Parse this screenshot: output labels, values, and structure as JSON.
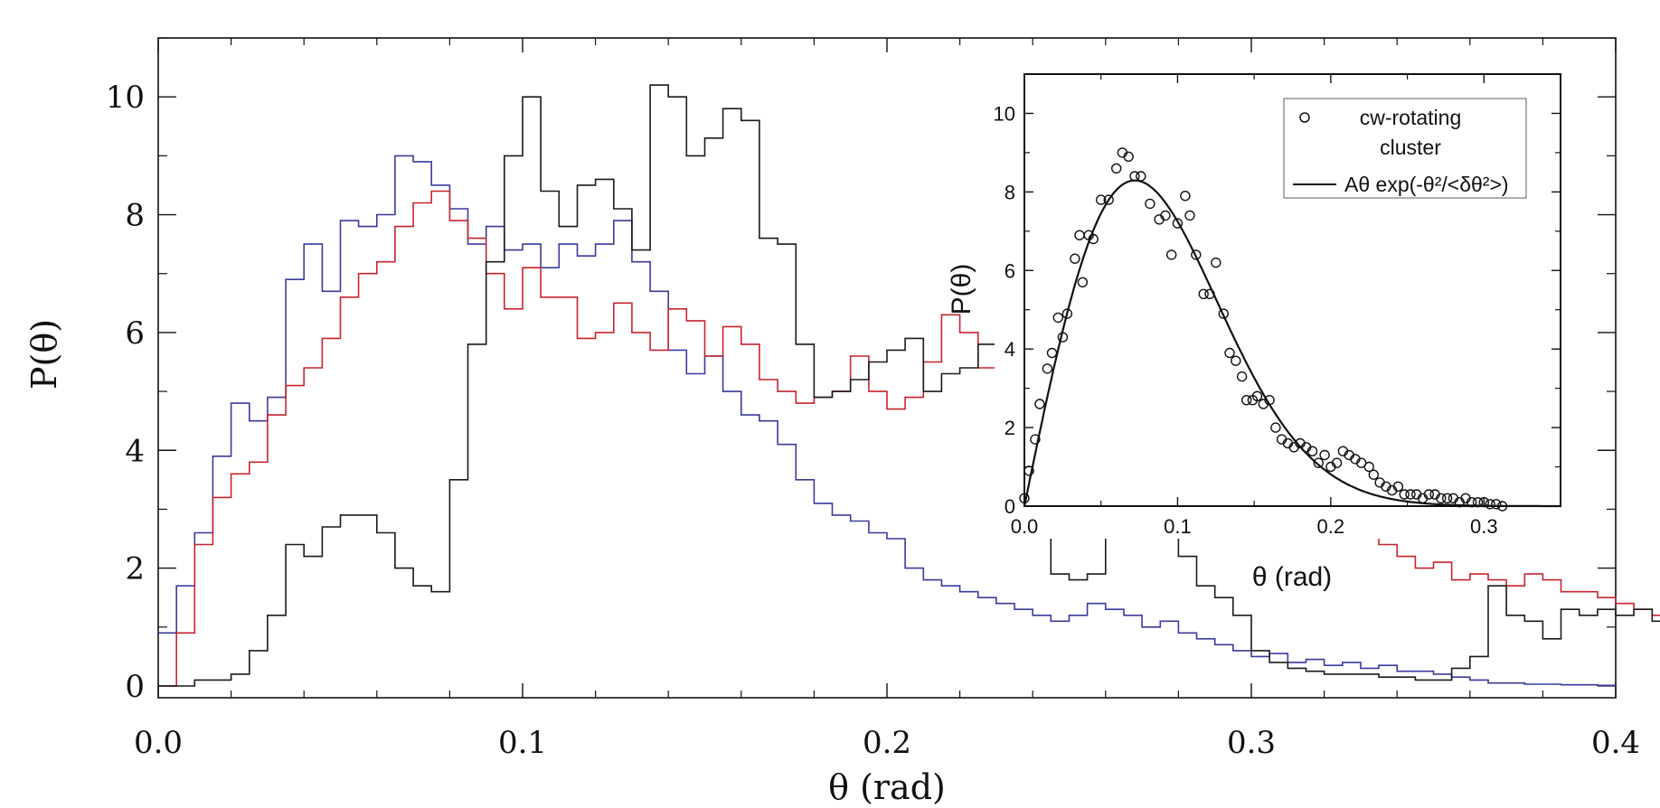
{
  "chart_data": [
    {
      "type": "line",
      "subtype": "step-histogram",
      "title": "",
      "xlabel": "θ (rad)",
      "ylabel": "P(θ)",
      "xlim": [
        0.0,
        0.4
      ],
      "ylim": [
        -0.2,
        11.0
      ],
      "x_ticks": [
        0.0,
        0.1,
        0.2,
        0.3,
        0.4
      ],
      "x_tick_labels": [
        "0.0",
        "0.1",
        "0.2",
        "0.3",
        "0.4"
      ],
      "y_ticks": [
        0,
        2,
        4,
        6,
        8,
        10
      ],
      "y_tick_labels": [
        "0",
        "2",
        "4",
        "6",
        "8",
        "10"
      ],
      "bin_width": 0.005,
      "bin_start": 0.0,
      "series": [
        {
          "name": "blue",
          "color": "#3a3a9e",
          "values": [
            0.9,
            1.7,
            2.6,
            3.9,
            4.8,
            4.5,
            4.9,
            6.9,
            7.5,
            6.7,
            7.9,
            7.8,
            8.0,
            9.0,
            8.9,
            8.5,
            8.1,
            7.5,
            7.8,
            7.4,
            7.5,
            7.1,
            7.5,
            7.3,
            7.5,
            7.9,
            7.2,
            6.7,
            5.7,
            5.3,
            5.6,
            5.0,
            4.6,
            4.5,
            4.1,
            3.5,
            3.1,
            2.9,
            2.8,
            2.6,
            2.5,
            2.0,
            1.8,
            1.7,
            1.6,
            1.5,
            1.4,
            1.3,
            1.2,
            1.1,
            1.2,
            1.4,
            1.3,
            1.2,
            1.0,
            1.1,
            0.9,
            0.8,
            0.7,
            0.6,
            0.5,
            0.55,
            0.4,
            0.45,
            0.35,
            0.4,
            0.3,
            0.35,
            0.25,
            0.25,
            0.2,
            0.15,
            0.1,
            0.05,
            0.05,
            0.03,
            0.03,
            0.02,
            0.02,
            0.01
          ]
        },
        {
          "name": "red",
          "color": "#c8242f",
          "values": [
            0.0,
            0.9,
            2.4,
            3.2,
            3.6,
            3.8,
            4.6,
            5.1,
            5.4,
            5.9,
            6.6,
            7.0,
            7.2,
            7.8,
            8.2,
            8.4,
            7.9,
            7.6,
            7.0,
            6.4,
            7.1,
            6.6,
            6.6,
            5.9,
            6.0,
            6.5,
            6.0,
            5.7,
            6.4,
            6.2,
            5.6,
            6.1,
            5.8,
            5.2,
            5.0,
            4.8,
            4.9,
            5.0,
            5.6,
            5.0,
            4.7,
            4.9,
            5.5,
            6.3,
            6.0,
            5.4,
            5.3,
            5.7,
            5.3,
            5.6,
            4.8,
            4.6,
            4.5,
            4.4,
            4.3,
            3.4,
            3.2,
            2.9,
            2.7,
            2.8,
            2.7,
            2.9,
            3.0,
            3.4,
            3.0,
            3.3,
            3.0,
            2.4,
            2.2,
            2.0,
            2.1,
            1.8,
            1.9,
            1.8,
            1.7,
            1.9,
            1.8,
            1.6,
            1.6,
            1.5,
            1.4,
            1.3,
            1.2,
            1.0,
            0.95,
            0.9,
            0.85,
            0.75,
            0.65,
            0.55,
            0.45,
            0.35,
            0.25,
            0.18,
            0.12,
            0.1,
            0.09,
            0.08,
            0.07,
            0.06,
            0.05,
            0.04,
            0.06,
            0.05,
            0.04,
            0.05,
            0.04,
            0.05,
            0.04,
            0.03,
            0.03,
            0.02,
            0.02,
            0.03,
            0.02,
            0.02,
            0.03,
            0.02,
            0.02,
            0.01
          ]
        },
        {
          "name": "black",
          "color": "#1a1a1a",
          "values": [
            0.0,
            0.0,
            0.1,
            0.1,
            0.2,
            0.6,
            1.2,
            2.4,
            2.2,
            2.7,
            2.9,
            2.9,
            2.6,
            2.0,
            1.7,
            1.6,
            3.5,
            5.8,
            7.2,
            9.0,
            10.0,
            8.4,
            7.8,
            8.5,
            8.6,
            8.1,
            7.4,
            10.2,
            10.0,
            9.0,
            9.3,
            9.8,
            9.6,
            7.6,
            7.5,
            5.8,
            4.9,
            5.0,
            5.2,
            5.5,
            5.7,
            5.9,
            5.0,
            5.3,
            5.4,
            5.8,
            5.4,
            4.8,
            3.1,
            1.9,
            1.8,
            1.9,
            2.9,
            3.4,
            4.0,
            3.1,
            2.2,
            1.7,
            1.5,
            1.2,
            0.6,
            0.4,
            0.3,
            0.25,
            0.2,
            0.2,
            0.2,
            0.15,
            0.15,
            0.1,
            0.1,
            0.3,
            0.5,
            1.7,
            1.2,
            1.1,
            0.8,
            1.3,
            1.2,
            1.3,
            1.2,
            1.3,
            1.1,
            0.9,
            0.6,
            0.3,
            0.2,
            0.1,
            0.05,
            0.0
          ]
        }
      ]
    },
    {
      "type": "scatter",
      "title": "",
      "xlabel": "θ (rad)",
      "ylabel": "P(θ)",
      "xlim": [
        0.0,
        0.35
      ],
      "ylim": [
        0,
        11
      ],
      "x_ticks": [
        0.0,
        0.1,
        0.2,
        0.3
      ],
      "x_tick_labels": [
        "0.0",
        "0.1",
        "0.2",
        "0.3"
      ],
      "y_ticks": [
        0,
        2,
        4,
        6,
        8,
        10
      ],
      "y_tick_labels": [
        "0",
        "2",
        "4",
        "6",
        "8",
        "10"
      ],
      "legend": {
        "placement": "top-right",
        "entries": [
          {
            "marker": "open-circle",
            "label_line1": "cw-rotating",
            "label_line2": "cluster"
          },
          {
            "marker": "line",
            "label": "Aθ exp(-θ²/<δθ²>)"
          }
        ]
      },
      "series": [
        {
          "name": "cw-rotating cluster",
          "marker": "open-circle",
          "points": [
            [
              0.0,
              0.2
            ],
            [
              0.003,
              0.9
            ],
            [
              0.007,
              1.7
            ],
            [
              0.01,
              2.6
            ],
            [
              0.015,
              3.5
            ],
            [
              0.018,
              3.9
            ],
            [
              0.022,
              4.8
            ],
            [
              0.025,
              4.3
            ],
            [
              0.028,
              4.9
            ],
            [
              0.033,
              6.3
            ],
            [
              0.036,
              6.9
            ],
            [
              0.038,
              5.7
            ],
            [
              0.042,
              6.9
            ],
            [
              0.045,
              6.8
            ],
            [
              0.05,
              7.8
            ],
            [
              0.055,
              7.8
            ],
            [
              0.06,
              8.6
            ],
            [
              0.064,
              9.0
            ],
            [
              0.068,
              8.9
            ],
            [
              0.072,
              8.4
            ],
            [
              0.076,
              8.4
            ],
            [
              0.082,
              7.7
            ],
            [
              0.088,
              7.3
            ],
            [
              0.092,
              7.4
            ],
            [
              0.096,
              6.4
            ],
            [
              0.1,
              7.2
            ],
            [
              0.105,
              7.9
            ],
            [
              0.108,
              7.4
            ],
            [
              0.112,
              6.4
            ],
            [
              0.117,
              5.4
            ],
            [
              0.121,
              5.4
            ],
            [
              0.125,
              6.2
            ],
            [
              0.13,
              4.9
            ],
            [
              0.134,
              3.9
            ],
            [
              0.138,
              3.7
            ],
            [
              0.142,
              3.3
            ],
            [
              0.145,
              2.7
            ],
            [
              0.149,
              2.7
            ],
            [
              0.152,
              2.8
            ],
            [
              0.156,
              2.6
            ],
            [
              0.16,
              2.7
            ],
            [
              0.164,
              2.0
            ],
            [
              0.168,
              1.7
            ],
            [
              0.172,
              1.6
            ],
            [
              0.176,
              1.5
            ],
            [
              0.18,
              1.6
            ],
            [
              0.184,
              1.5
            ],
            [
              0.188,
              1.4
            ],
            [
              0.192,
              1.1
            ],
            [
              0.196,
              1.3
            ],
            [
              0.2,
              1.0
            ],
            [
              0.204,
              1.1
            ],
            [
              0.208,
              1.4
            ],
            [
              0.212,
              1.3
            ],
            [
              0.216,
              1.2
            ],
            [
              0.22,
              1.1
            ],
            [
              0.225,
              1.0
            ],
            [
              0.228,
              0.8
            ],
            [
              0.232,
              0.6
            ],
            [
              0.236,
              0.5
            ],
            [
              0.24,
              0.4
            ],
            [
              0.244,
              0.5
            ],
            [
              0.248,
              0.3
            ],
            [
              0.252,
              0.3
            ],
            [
              0.256,
              0.3
            ],
            [
              0.26,
              0.2
            ],
            [
              0.264,
              0.3
            ],
            [
              0.268,
              0.3
            ],
            [
              0.272,
              0.2
            ],
            [
              0.276,
              0.2
            ],
            [
              0.28,
              0.2
            ],
            [
              0.284,
              0.1
            ],
            [
              0.288,
              0.2
            ],
            [
              0.292,
              0.1
            ],
            [
              0.296,
              0.1
            ],
            [
              0.3,
              0.1
            ],
            [
              0.304,
              0.05
            ],
            [
              0.308,
              0.05
            ],
            [
              0.312,
              0.0
            ]
          ]
        },
        {
          "name": "Aθ exp(-θ²/<δθ²>)",
          "type": "line",
          "A": 189.6,
          "delta_theta_sq": 0.0104,
          "x_range": [
            0.0,
            0.35
          ]
        }
      ]
    }
  ]
}
